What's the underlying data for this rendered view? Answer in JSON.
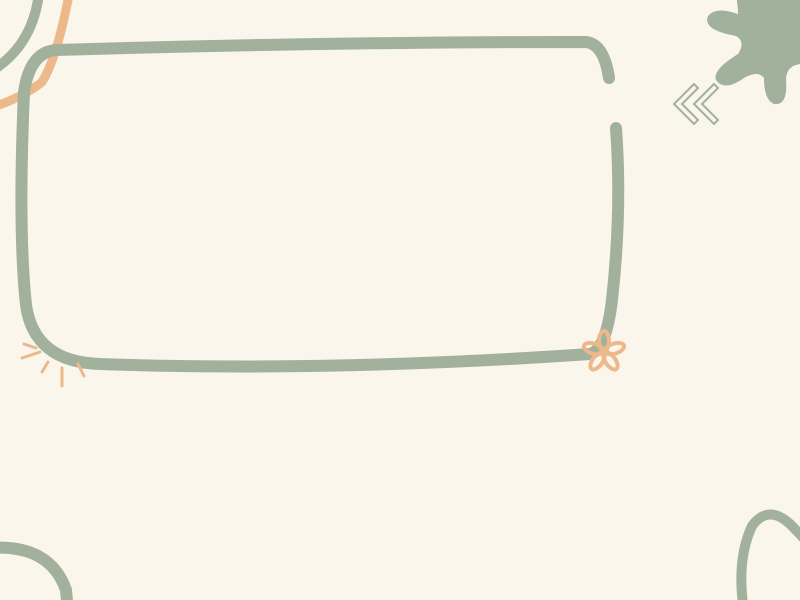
{
  "colors": {
    "background": "#FAF6EC",
    "sage": "#A1B19C",
    "orange": "#EDB98A"
  },
  "icons": {
    "frame": "hand-drawn-rounded-frame",
    "arrows": "double-chevron-left-icon",
    "flower": "flower-doodle-icon",
    "burst": "burst-lines-doodle-icon",
    "leaf": "leaf-blob-icon"
  }
}
